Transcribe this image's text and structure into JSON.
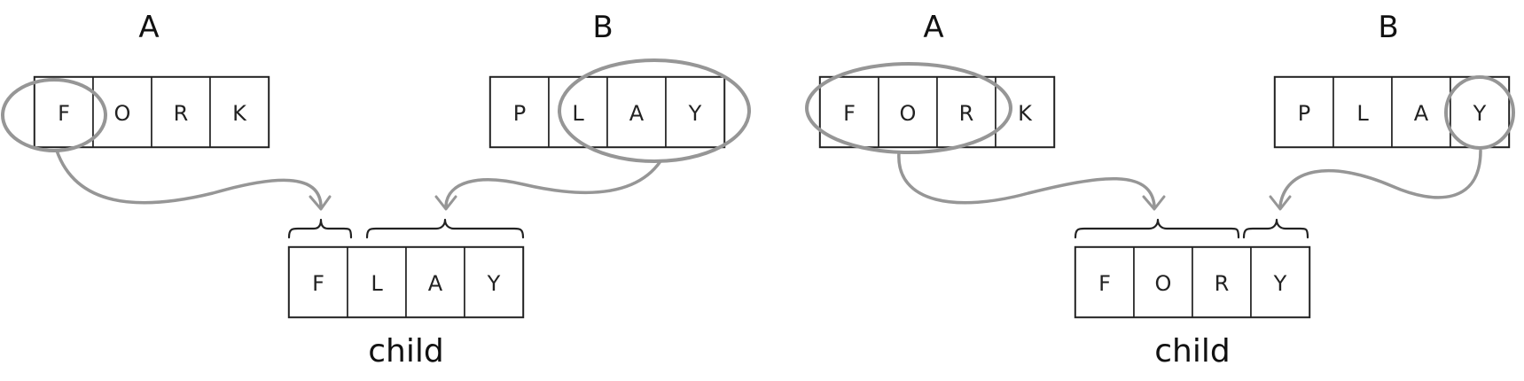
{
  "panels": [
    {
      "parent_a": {
        "label": "A",
        "genes": [
          "F",
          "O",
          "R",
          "K"
        ]
      },
      "parent_b": {
        "label": "B",
        "genes": [
          "P",
          "L",
          "A",
          "Y"
        ]
      },
      "crossover_point": 1,
      "child": {
        "genes": [
          "F",
          "L",
          "A",
          "Y"
        ],
        "label": "child"
      }
    },
    {
      "parent_a": {
        "label": "A",
        "genes": [
          "F",
          "O",
          "R",
          "K"
        ]
      },
      "parent_b": {
        "label": "B",
        "genes": [
          "P",
          "L",
          "A",
          "Y"
        ]
      },
      "crossover_point": 3,
      "child": {
        "genes": [
          "F",
          "O",
          "R",
          "Y"
        ],
        "label": "child"
      }
    }
  ],
  "colors": {
    "ink": "#222222",
    "highlight": "#969696",
    "background": "#ffffff"
  }
}
